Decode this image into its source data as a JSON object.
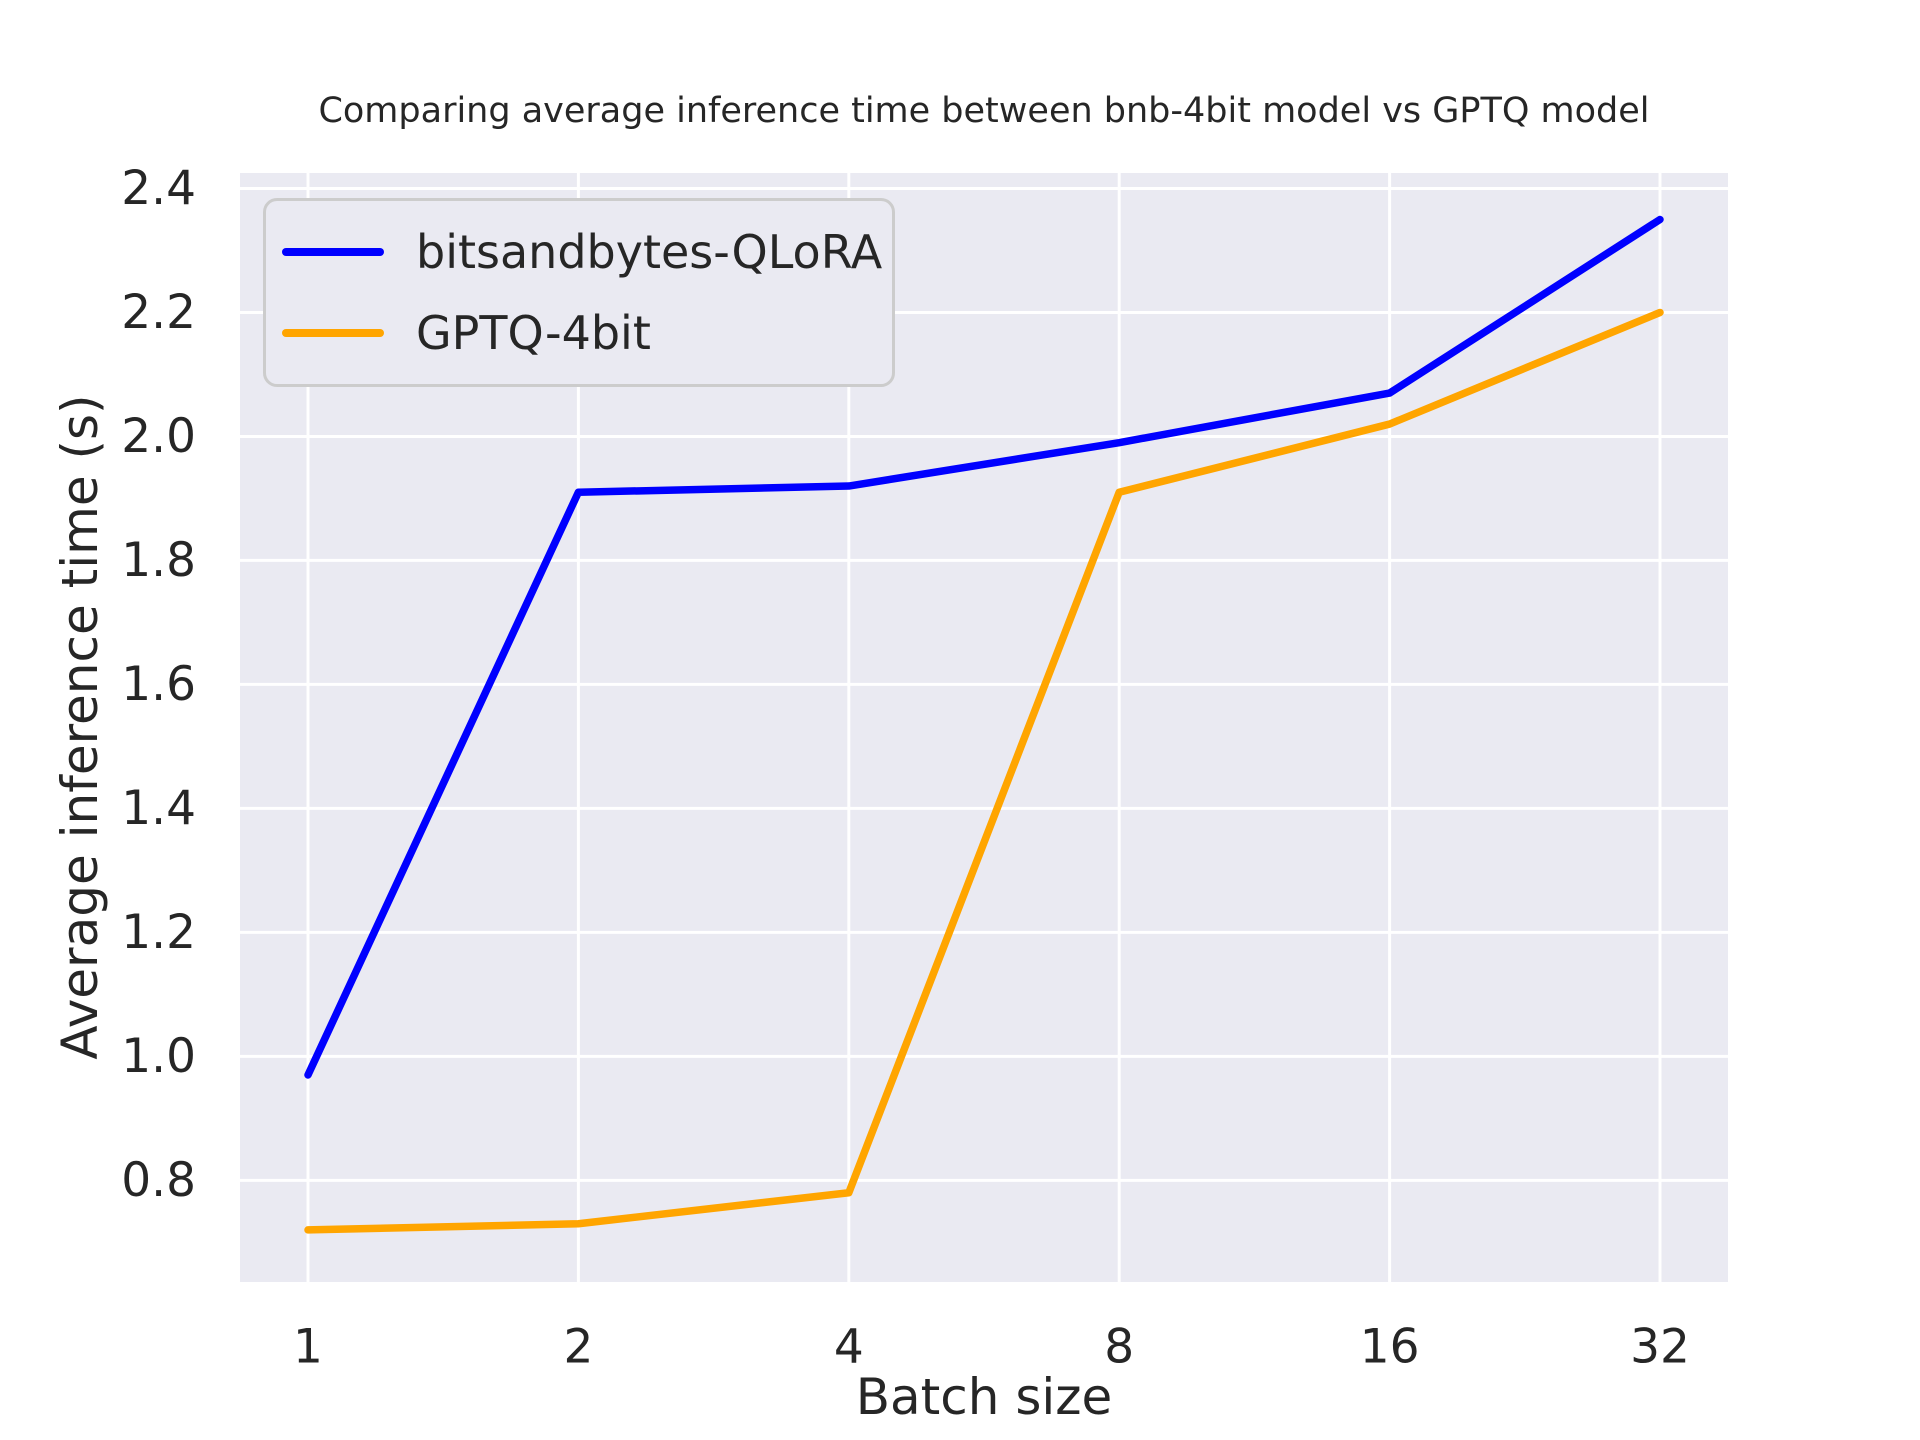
{
  "figure": {
    "background": "#ffffff"
  },
  "chart_data": {
    "type": "line",
    "title": "Comparing average inference time between bnb-4bit model vs GPTQ model",
    "xlabel": "Batch size",
    "ylabel": "Average inference time (s)",
    "categories": [
      "1",
      "2",
      "4",
      "8",
      "16",
      "32"
    ],
    "series": [
      {
        "name": "bitsandbytes-QLoRA",
        "color": "#0000ff",
        "values": [
          0.97,
          1.91,
          1.92,
          1.99,
          2.07,
          2.35
        ]
      },
      {
        "name": "GPTQ-4bit",
        "color": "#ffa500",
        "values": [
          0.72,
          0.73,
          0.78,
          1.91,
          2.02,
          2.2
        ]
      }
    ],
    "yticks": [
      0.8,
      1.0,
      1.2,
      1.4,
      1.6,
      1.8,
      2.0,
      2.2,
      2.4
    ],
    "ylim": [
      0.636,
      2.425
    ],
    "grid": true,
    "legend_position": "upper-left",
    "styles": {
      "plot_bg": "#eaeaf2",
      "grid_color": "#ffffff",
      "text_color": "#262626",
      "legend_bg": "#eaeaf2",
      "legend_border": "#cccccc"
    }
  }
}
